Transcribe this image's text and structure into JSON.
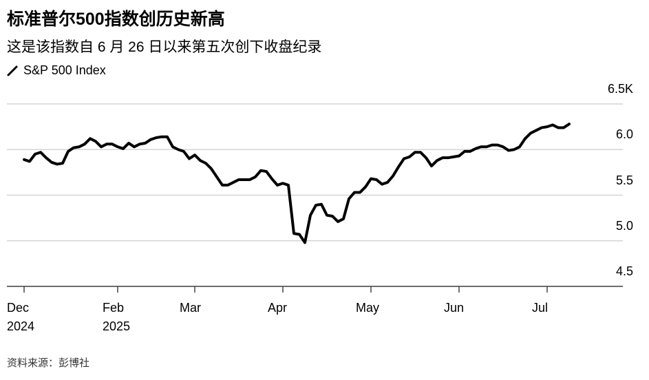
{
  "chart_data": {
    "type": "line",
    "title": "标准普尔500指数创历史新高",
    "subtitle": "这是该指数自 6 月 26 日以来第五次创下收盘纪录",
    "source": "资料来源：彭博社",
    "categories": [
      "Dec 2024",
      null,
      null,
      null,
      null,
      null,
      null,
      null,
      null,
      null,
      null,
      null,
      null,
      null,
      null,
      null,
      null,
      "Feb 2025",
      null,
      null,
      null,
      null,
      null,
      null,
      null,
      null,
      null,
      null,
      null,
      null,
      null,
      "Mar",
      null,
      null,
      null,
      null,
      null,
      null,
      null,
      null,
      null,
      null,
      null,
      null,
      null,
      null,
      null,
      "Apr",
      null,
      null,
      null,
      null,
      null,
      null,
      null,
      null,
      null,
      null,
      null,
      null,
      null,
      null,
      null,
      "May",
      null,
      null,
      null,
      null,
      null,
      null,
      null,
      null,
      null,
      null,
      null,
      null,
      null,
      null,
      null,
      "Jun",
      null,
      null,
      null,
      null,
      null,
      null,
      null,
      null,
      null,
      null,
      null,
      null,
      null,
      null,
      null,
      "Jul",
      null,
      null,
      null,
      null
    ],
    "series": [
      {
        "name": "S&P 500 Index",
        "color": "#000000",
        "values": [
          5.89,
          5.87,
          5.95,
          5.97,
          5.91,
          5.86,
          5.84,
          5.85,
          5.98,
          6.02,
          6.03,
          6.06,
          6.12,
          6.09,
          6.03,
          6.06,
          6.06,
          6.03,
          6.01,
          6.07,
          6.03,
          6.06,
          6.07,
          6.11,
          6.13,
          6.14,
          6.14,
          6.03,
          6.0,
          5.98,
          5.9,
          5.94,
          5.88,
          5.85,
          5.79,
          5.7,
          5.61,
          5.61,
          5.64,
          5.67,
          5.67,
          5.67,
          5.7,
          5.77,
          5.76,
          5.68,
          5.61,
          5.63,
          5.61,
          5.08,
          5.07,
          4.98,
          5.28,
          5.39,
          5.4,
          5.28,
          5.27,
          5.21,
          5.24,
          5.46,
          5.53,
          5.53,
          5.59,
          5.68,
          5.67,
          5.62,
          5.64,
          5.71,
          5.81,
          5.9,
          5.92,
          5.97,
          5.97,
          5.91,
          5.82,
          5.88,
          5.91,
          5.91,
          5.92,
          5.93,
          5.98,
          5.98,
          6.01,
          6.03,
          6.03,
          6.05,
          6.05,
          6.03,
          5.99,
          6.0,
          6.03,
          6.12,
          6.18,
          6.21,
          6.24,
          6.25,
          6.27,
          6.24,
          6.24,
          6.28
        ]
      }
    ],
    "ylim": [
      4.5,
      6.5
    ],
    "yticks": [
      4.5,
      {
        "value": 5,
        "label": "5.0"
      },
      5.5,
      {
        "value": 6,
        "label": "6.0"
      },
      {
        "value": 6.5,
        "label": "6.5K"
      }
    ],
    "grid": true
  }
}
